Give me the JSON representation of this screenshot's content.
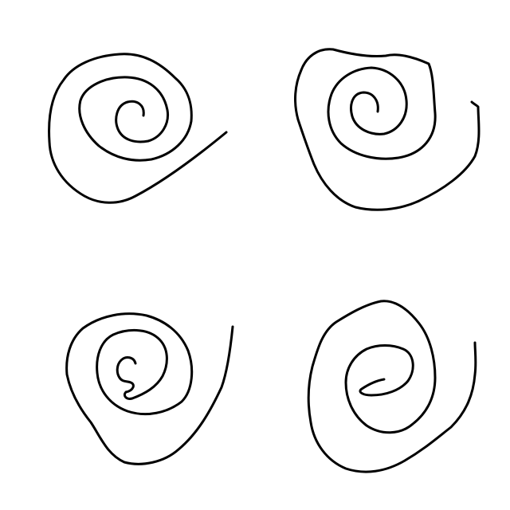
{
  "canvas": {
    "background_color": "#ffffff",
    "stroke_color": "#000000"
  },
  "drawings": [
    {
      "name": "spiral-top-left"
    },
    {
      "name": "spiral-top-right"
    },
    {
      "name": "spiral-bottom-left"
    },
    {
      "name": "spiral-bottom-right"
    }
  ]
}
